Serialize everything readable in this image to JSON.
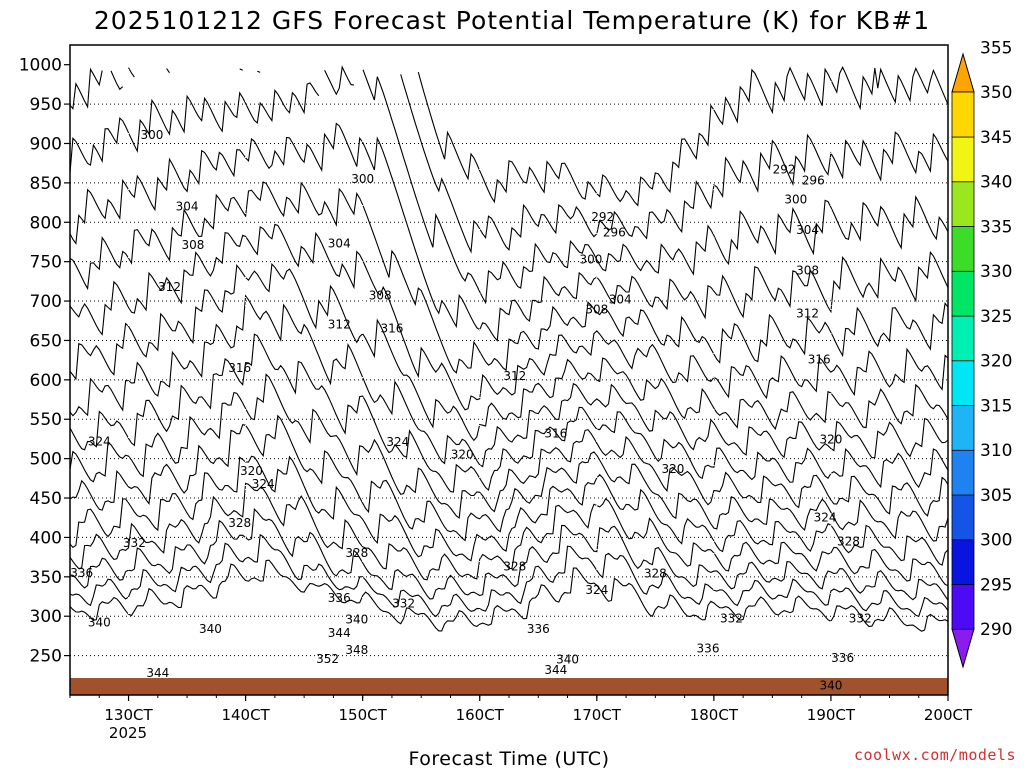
{
  "chart_data": {
    "type": "contour",
    "title": "2025101212 GFS Forecast Potential Temperature (K) for KB#1",
    "xlabel": "Forecast Time (UTC)",
    "ylabel": "",
    "credit": "coolwx.com/models",
    "x_ticks": [
      "130CT",
      "140CT",
      "150CT",
      "160CT",
      "170CT",
      "180CT",
      "190CT",
      "200CT"
    ],
    "x_year_label": "2025",
    "x_range_days": [
      12.5,
      20.0
    ],
    "y_ticks": [
      250,
      300,
      350,
      400,
      450,
      500,
      550,
      600,
      650,
      700,
      750,
      800,
      850,
      900,
      950,
      1000
    ],
    "y_range_hPa": [
      1025,
      200
    ],
    "colorbar": {
      "levels": [
        290,
        295,
        300,
        305,
        310,
        315,
        320,
        325,
        330,
        335,
        340,
        345,
        350,
        355
      ],
      "colors": [
        "#8a1cf0",
        "#4c0af5",
        "#0a14e0",
        "#1455e6",
        "#1e82f0",
        "#1eb4f5",
        "#00e6f5",
        "#00f0b4",
        "#00e664",
        "#3cdc28",
        "#9be61e",
        "#f0f514",
        "#ffd700",
        "#ffa500"
      ]
    },
    "isentrope_levels": [
      292,
      296,
      300,
      304,
      308,
      312,
      316,
      320,
      324,
      328,
      332,
      336,
      340,
      344,
      348,
      352
    ],
    "labeled_contours": [
      {
        "value": "344",
        "x": 13.25,
        "y": 228
      },
      {
        "value": "340",
        "x": 12.75,
        "y": 292
      },
      {
        "value": "340",
        "x": 13.7,
        "y": 284
      },
      {
        "value": "336",
        "x": 12.6,
        "y": 355
      },
      {
        "value": "332",
        "x": 13.05,
        "y": 393
      },
      {
        "value": "328",
        "x": 13.95,
        "y": 418
      },
      {
        "value": "324",
        "x": 14.15,
        "y": 468
      },
      {
        "value": "320",
        "x": 14.05,
        "y": 484
      },
      {
        "value": "324",
        "x": 12.75,
        "y": 522
      },
      {
        "value": "316",
        "x": 13.95,
        "y": 615
      },
      {
        "value": "312",
        "x": 13.35,
        "y": 718
      },
      {
        "value": "308",
        "x": 13.55,
        "y": 771
      },
      {
        "value": "304",
        "x": 13.5,
        "y": 820
      },
      {
        "value": "300",
        "x": 13.2,
        "y": 911
      },
      {
        "value": "352",
        "x": 14.7,
        "y": 246
      },
      {
        "value": "348",
        "x": 14.95,
        "y": 257
      },
      {
        "value": "344",
        "x": 14.8,
        "y": 279
      },
      {
        "value": "340",
        "x": 14.95,
        "y": 296
      },
      {
        "value": "336",
        "x": 14.8,
        "y": 323
      },
      {
        "value": "332",
        "x": 15.35,
        "y": 316
      },
      {
        "value": "328",
        "x": 14.95,
        "y": 380
      },
      {
        "value": "324",
        "x": 15.3,
        "y": 521
      },
      {
        "value": "320",
        "x": 15.85,
        "y": 505
      },
      {
        "value": "316",
        "x": 15.25,
        "y": 665
      },
      {
        "value": "312",
        "x": 14.8,
        "y": 670
      },
      {
        "value": "308",
        "x": 15.15,
        "y": 707
      },
      {
        "value": "304",
        "x": 14.8,
        "y": 773
      },
      {
        "value": "300",
        "x": 15.0,
        "y": 855
      },
      {
        "value": "344",
        "x": 16.65,
        "y": 232
      },
      {
        "value": "340",
        "x": 16.75,
        "y": 245
      },
      {
        "value": "336",
        "x": 16.5,
        "y": 284
      },
      {
        "value": "328",
        "x": 16.3,
        "y": 363
      },
      {
        "value": "324",
        "x": 17.0,
        "y": 333
      },
      {
        "value": "328",
        "x": 17.5,
        "y": 354
      },
      {
        "value": "316",
        "x": 16.65,
        "y": 532
      },
      {
        "value": "312",
        "x": 16.3,
        "y": 605
      },
      {
        "value": "308",
        "x": 17.0,
        "y": 689
      },
      {
        "value": "304",
        "x": 17.2,
        "y": 702
      },
      {
        "value": "300",
        "x": 16.95,
        "y": 753
      },
      {
        "value": "296",
        "x": 17.15,
        "y": 787
      },
      {
        "value": "292",
        "x": 17.05,
        "y": 807
      },
      {
        "value": "320",
        "x": 17.65,
        "y": 487
      },
      {
        "value": "336",
        "x": 17.95,
        "y": 259
      },
      {
        "value": "332",
        "x": 18.15,
        "y": 297
      },
      {
        "value": "340",
        "x": 19.0,
        "y": 212
      },
      {
        "value": "336",
        "x": 19.1,
        "y": 247
      },
      {
        "value": "332",
        "x": 19.25,
        "y": 297
      },
      {
        "value": "328",
        "x": 19.15,
        "y": 395
      },
      {
        "value": "324",
        "x": 18.95,
        "y": 425
      },
      {
        "value": "320",
        "x": 19.0,
        "y": 524
      },
      {
        "value": "316",
        "x": 18.9,
        "y": 626
      },
      {
        "value": "312",
        "x": 18.8,
        "y": 684
      },
      {
        "value": "308",
        "x": 18.8,
        "y": 739
      },
      {
        "value": "304",
        "x": 18.8,
        "y": 790
      },
      {
        "value": "300",
        "x": 18.7,
        "y": 829
      },
      {
        "value": "296",
        "x": 18.85,
        "y": 853
      },
      {
        "value": "292",
        "x": 18.6,
        "y": 867
      }
    ]
  }
}
